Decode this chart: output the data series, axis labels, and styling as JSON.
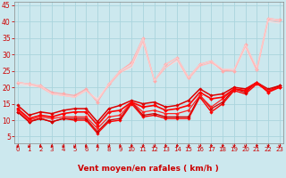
{
  "bg_color": "#cce8ee",
  "grid_color": "#aad4dd",
  "xlabel": "Vent moyen/en rafales ( km/h )",
  "x": [
    0,
    1,
    2,
    3,
    4,
    5,
    6,
    7,
    8,
    9,
    10,
    11,
    12,
    13,
    14,
    15,
    16,
    17,
    18,
    19,
    20,
    21,
    22,
    23
  ],
  "series": [
    {
      "y": [
        21.5,
        21.0,
        20.5,
        18.5,
        18.0,
        17.5,
        19.5,
        15.5,
        21.0,
        25.0,
        27.5,
        35.0,
        22.0,
        27.0,
        29.0,
        23.0,
        27.0,
        28.0,
        25.0,
        25.0,
        33.0,
        25.5,
        41.0,
        40.5
      ],
      "color": "#ffaaaa",
      "lw": 0.9,
      "marker": "D",
      "ms": 2.0,
      "zorder": 2
    },
    {
      "y": [
        21.5,
        21.0,
        20.0,
        18.0,
        17.5,
        17.0,
        19.0,
        16.0,
        20.5,
        24.5,
        26.5,
        34.0,
        22.0,
        26.0,
        28.5,
        22.5,
        26.5,
        27.5,
        25.5,
        25.0,
        32.5,
        25.0,
        40.5,
        40.0
      ],
      "color": "#ffbbbb",
      "lw": 0.8,
      "marker": null,
      "ms": 0,
      "zorder": 2
    },
    {
      "y": [
        21.5,
        21.0,
        20.5,
        18.0,
        17.5,
        17.0,
        19.0,
        16.0,
        21.0,
        25.0,
        27.0,
        35.0,
        22.0,
        27.0,
        29.0,
        23.0,
        27.0,
        28.0,
        25.5,
        25.5,
        33.0,
        26.0,
        41.0,
        40.5
      ],
      "color": "#ffcccc",
      "lw": 0.8,
      "marker": null,
      "ms": 0,
      "zorder": 2
    },
    {
      "y": [
        21.0,
        20.5,
        20.0,
        18.0,
        17.5,
        17.0,
        19.0,
        16.5,
        21.0,
        24.5,
        26.0,
        33.5,
        22.0,
        26.0,
        28.0,
        22.5,
        26.5,
        27.5,
        25.0,
        25.0,
        32.0,
        25.0,
        40.0,
        39.5
      ],
      "color": "#ffdddd",
      "lw": 0.7,
      "marker": null,
      "ms": 0,
      "zorder": 1
    },
    {
      "y": [
        12.5,
        9.5,
        10.5,
        9.5,
        10.5,
        10.0,
        10.0,
        6.0,
        9.5,
        10.0,
        15.0,
        11.0,
        11.5,
        10.5,
        10.5,
        10.5,
        17.0,
        12.5,
        15.0,
        19.0,
        18.0,
        21.0,
        19.0,
        20.0
      ],
      "color": "#ff0000",
      "lw": 1.0,
      "marker": "D",
      "ms": 1.8,
      "zorder": 4
    },
    {
      "y": [
        12.5,
        9.5,
        10.5,
        9.5,
        10.5,
        10.5,
        10.5,
        6.5,
        10.0,
        10.5,
        15.5,
        11.5,
        12.0,
        11.0,
        11.0,
        11.0,
        17.5,
        13.5,
        15.5,
        19.5,
        18.5,
        21.5,
        19.5,
        20.5
      ],
      "color": "#cc0000",
      "lw": 0.9,
      "marker": "D",
      "ms": 1.8,
      "zorder": 4
    },
    {
      "y": [
        13.0,
        10.0,
        11.0,
        10.5,
        11.0,
        11.0,
        11.0,
        7.5,
        11.0,
        11.5,
        15.5,
        12.5,
        13.0,
        12.0,
        12.0,
        13.0,
        17.5,
        14.0,
        16.5,
        19.5,
        19.0,
        21.5,
        19.0,
        20.0
      ],
      "color": "#ff2222",
      "lw": 0.9,
      "marker": "D",
      "ms": 1.8,
      "zorder": 4
    },
    {
      "y": [
        13.5,
        10.5,
        11.5,
        11.0,
        12.0,
        12.5,
        12.5,
        8.5,
        12.5,
        13.0,
        15.5,
        14.0,
        14.5,
        13.0,
        13.5,
        14.5,
        18.5,
        16.5,
        17.0,
        19.5,
        19.0,
        21.5,
        18.5,
        20.0
      ],
      "color": "#ff0000",
      "lw": 1.2,
      "marker": "D",
      "ms": 2.0,
      "zorder": 4
    },
    {
      "y": [
        14.5,
        11.5,
        12.5,
        12.0,
        13.0,
        13.5,
        13.5,
        9.5,
        13.5,
        14.5,
        16.0,
        15.0,
        15.5,
        14.0,
        14.5,
        16.0,
        19.5,
        17.5,
        18.0,
        20.0,
        19.5,
        21.5,
        19.0,
        20.5
      ],
      "color": "#dd0000",
      "lw": 1.1,
      "marker": "D",
      "ms": 1.8,
      "zorder": 3
    }
  ],
  "ylim": [
    3,
    46
  ],
  "xlim": [
    -0.3,
    23.3
  ],
  "yticks": [
    5,
    10,
    15,
    20,
    25,
    30,
    35,
    40,
    45
  ],
  "xticks": [
    0,
    1,
    2,
    3,
    4,
    5,
    6,
    7,
    8,
    9,
    10,
    11,
    12,
    13,
    14,
    15,
    16,
    17,
    18,
    19,
    20,
    21,
    22,
    23
  ],
  "tick_fontsize": 5.0,
  "xlabel_fontsize": 6.5,
  "tick_color": "#cc0000",
  "label_color": "#cc0000",
  "arrow_color": "#cc0000"
}
